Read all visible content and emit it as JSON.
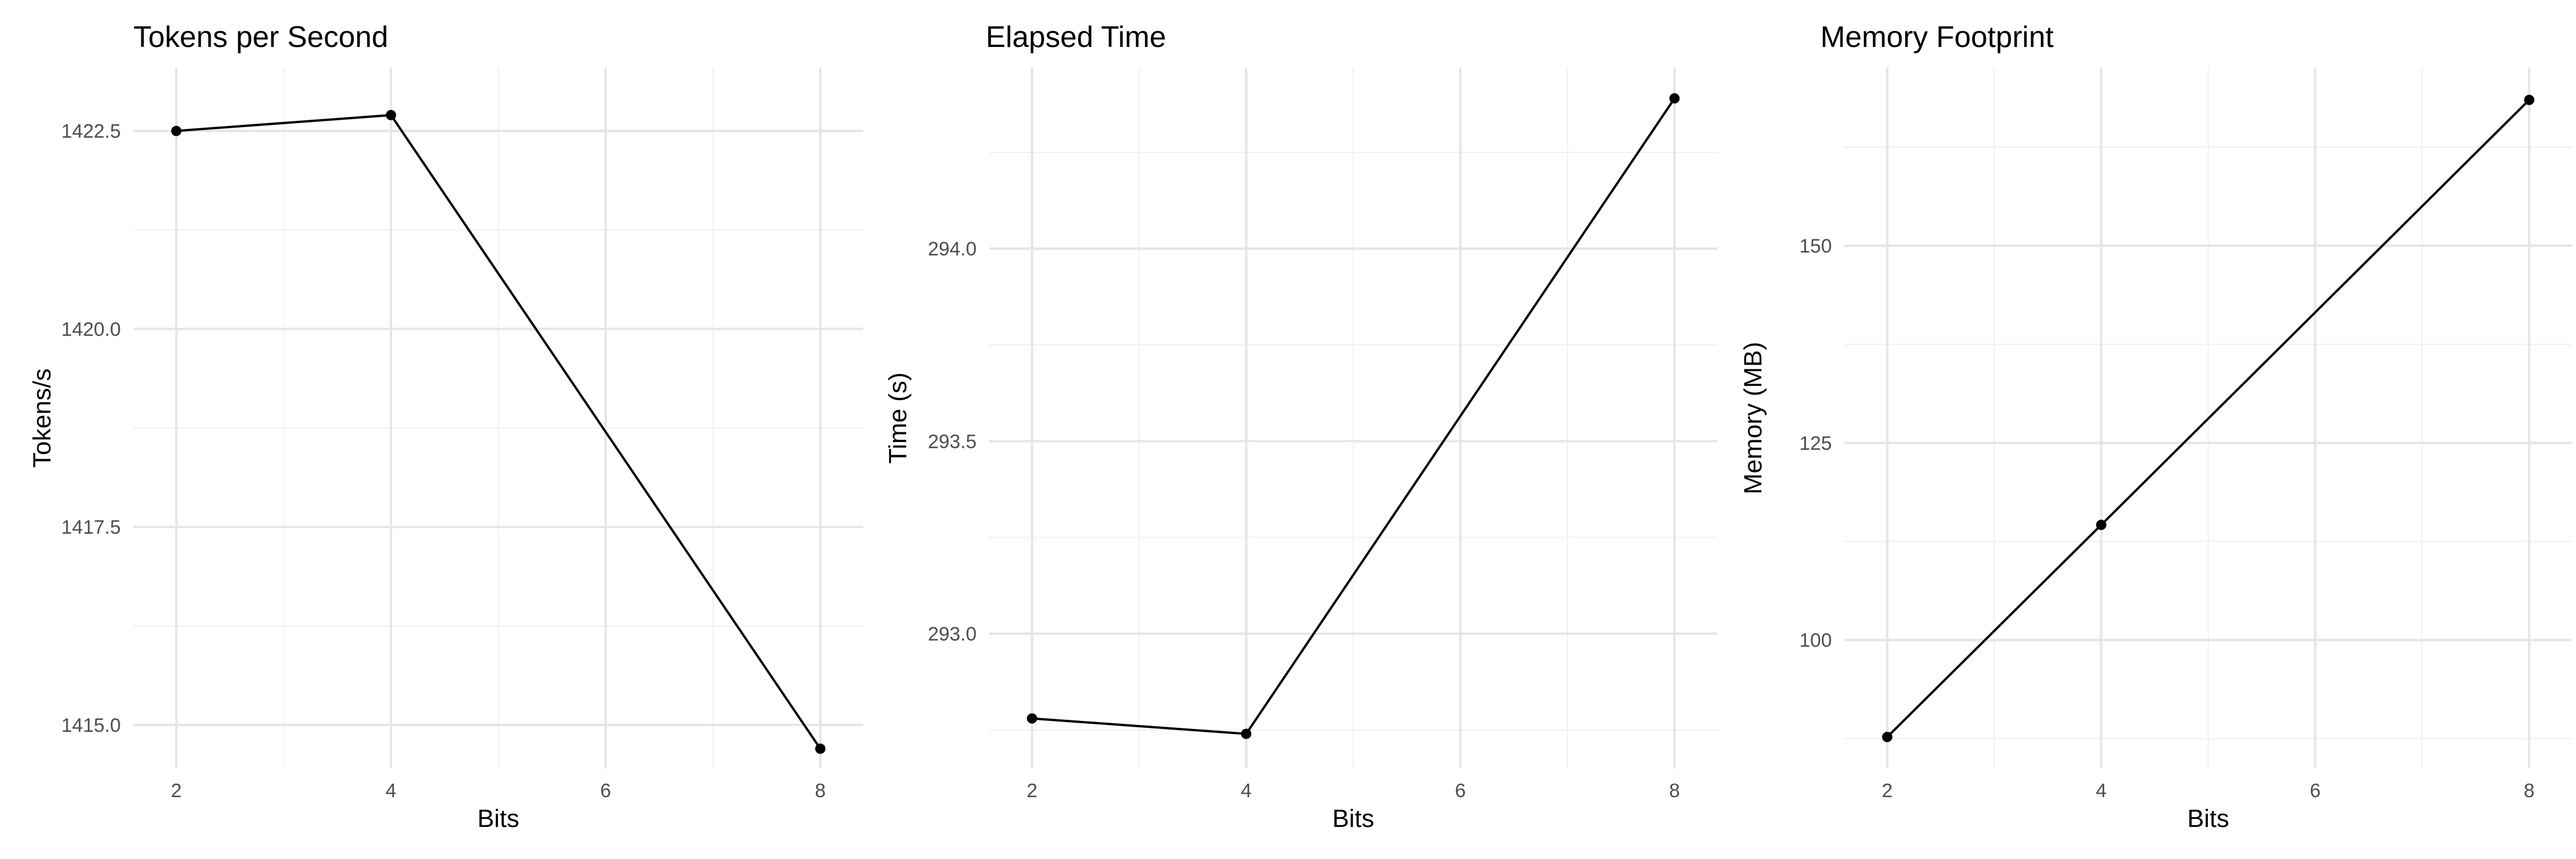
{
  "figure": {
    "background": "#ffffff",
    "grid_major_color": "#e5e5e5",
    "grid_minor_color": "#f0f0f0",
    "line_color": "#000000",
    "point_color": "#000000"
  },
  "chart_data": [
    {
      "type": "line",
      "title": "Tokens per Second",
      "xlabel": "Bits",
      "ylabel": "Tokens/s",
      "x": [
        2,
        4,
        8
      ],
      "series": [
        {
          "values": [
            1422.5,
            1422.7,
            1414.7
          ]
        }
      ],
      "xlim": [
        1.6,
        8.4
      ],
      "ylim": [
        1414.45,
        1423.3
      ],
      "xticks": [
        2,
        4,
        6,
        8
      ],
      "xtick_labels": [
        "2",
        "4",
        "6",
        "8"
      ],
      "yticks": [
        1415.0,
        1417.5,
        1420.0,
        1422.5
      ],
      "ytick_labels": [
        "1415.0",
        "1417.5",
        "1420.0",
        "1422.5"
      ],
      "grid": true,
      "legend": false
    },
    {
      "type": "line",
      "title": "Elapsed Time",
      "xlabel": "Bits",
      "ylabel": "Time (s)",
      "x": [
        2,
        4,
        8
      ],
      "series": [
        {
          "values": [
            292.78,
            292.74,
            294.39
          ]
        }
      ],
      "xlim": [
        1.6,
        8.4
      ],
      "ylim": [
        292.65,
        294.47
      ],
      "xticks": [
        2,
        4,
        6,
        8
      ],
      "xtick_labels": [
        "2",
        "4",
        "6",
        "8"
      ],
      "yticks": [
        293.0,
        293.5,
        294.0
      ],
      "ytick_labels": [
        "293.0",
        "293.5",
        "294.0"
      ],
      "grid": true,
      "legend": false
    },
    {
      "type": "line",
      "title": "Memory Footprint",
      "xlabel": "Bits",
      "ylabel": "Memory (MB)",
      "x": [
        2,
        4,
        8
      ],
      "series": [
        {
          "values": [
            87.7,
            114.6,
            168.5
          ]
        }
      ],
      "xlim": [
        1.6,
        8.4
      ],
      "ylim": [
        83.7,
        172.6
      ],
      "xticks": [
        2,
        4,
        6,
        8
      ],
      "xtick_labels": [
        "2",
        "4",
        "6",
        "8"
      ],
      "yticks": [
        100,
        125,
        150
      ],
      "ytick_labels": [
        "100",
        "125",
        "150"
      ],
      "grid": true,
      "legend": false
    }
  ]
}
